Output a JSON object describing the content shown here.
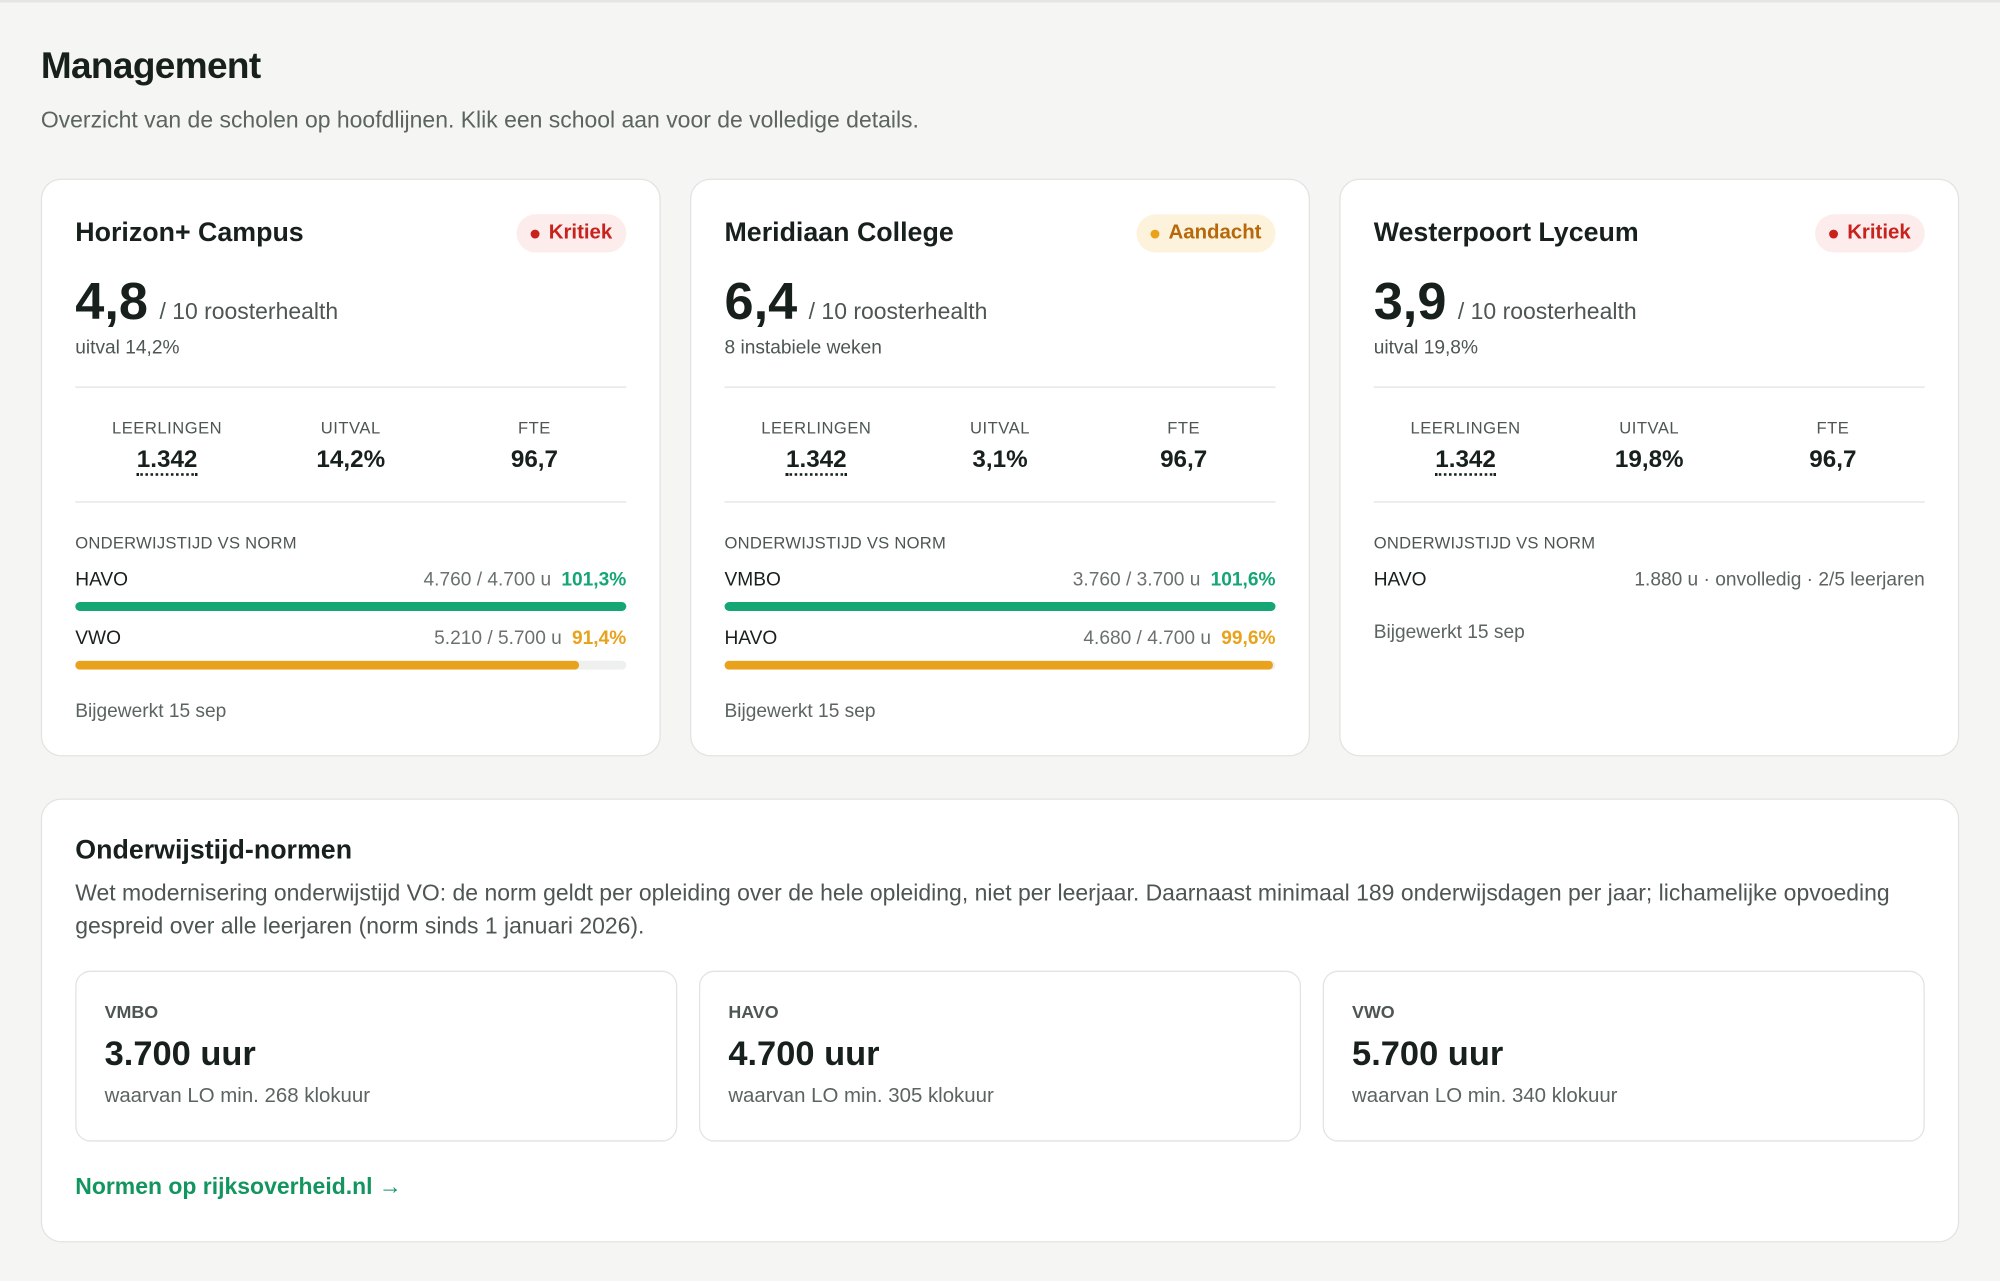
{
  "header": {
    "title": "Management",
    "subtitle": "Overzicht van de scholen op hoofdlijnen. Klik een school aan voor de volledige details."
  },
  "schools": [
    {
      "name": "Horizon+ Campus",
      "status": "Kritiek",
      "level": "critical",
      "score": "4,8",
      "score_suffix": "/ 10 roosterhealth",
      "note": "uitval 14,2%",
      "stats": [
        {
          "label": "LEERLINGEN",
          "value": "1.342"
        },
        {
          "label": "UITVAL",
          "value": "14,2%"
        },
        {
          "label": "FTE",
          "value": "96,7"
        }
      ],
      "section_title": "ONDERWIJSTIJD VS NORM",
      "programs": [
        {
          "name": "HAVO",
          "hours": "4.760 / 4.700 u",
          "percent": {
            "value": 101.3,
            "label": "101,3%"
          },
          "color": "#14a673"
        },
        {
          "name": "VWO",
          "hours": "5.210 / 5.700 u",
          "percent": {
            "value": 91.4,
            "label": "91,4%"
          },
          "color": "#e9a21b"
        }
      ],
      "updated": "Bijgewerkt 15 sep"
    },
    {
      "name": "Meridiaan College",
      "status": "Aandacht",
      "level": "warning",
      "score": "6,4",
      "score_suffix": "/ 10 roosterhealth",
      "note": "8 instabiele weken",
      "stats": [
        {
          "label": "LEERLINGEN",
          "value": "1.342"
        },
        {
          "label": "UITVAL",
          "value": "3,1%"
        },
        {
          "label": "FTE",
          "value": "96,7"
        }
      ],
      "section_title": "ONDERWIJSTIJD VS NORM",
      "programs": [
        {
          "name": "VMBO",
          "hours": "3.760 / 3.700 u",
          "percent": {
            "value": 101.6,
            "label": "101,6%"
          },
          "color": "#14a673"
        },
        {
          "name": "HAVO",
          "hours": "4.680 / 4.700 u",
          "percent": {
            "value": 99.6,
            "label": "99,6%"
          },
          "color": "#e9a21b"
        }
      ],
      "updated": "Bijgewerkt 15 sep"
    },
    {
      "name": "Westerpoort Lyceum",
      "status": "Kritiek",
      "level": "critical",
      "score": "3,9",
      "score_suffix": "/ 10 roosterhealth",
      "note": "uitval 19,8%",
      "stats": [
        {
          "label": "LEERLINGEN",
          "value": "1.342"
        },
        {
          "label": "UITVAL",
          "value": "19,8%"
        },
        {
          "label": "FTE",
          "value": "96,7"
        }
      ],
      "section_title": "ONDERWIJSTIJD VS NORM",
      "programs": [
        {
          "name": "HAVO",
          "hours": "1.880 u · onvolledig · 2/5 leerjaren"
        }
      ],
      "updated": "Bijgewerkt 15 sep"
    }
  ],
  "norms": {
    "title": "Onderwijstijd-normen",
    "text": "Wet modernisering onderwijstijd VO: de norm geldt per opleiding over de hele opleiding, niet per leerjaar. Daarnaast minimaal 189 onderwijsdagen per jaar; lichamelijke opvoeding gespreid over alle leerjaren (norm sinds 1 januari 2026).",
    "items": [
      {
        "level": "VMBO",
        "hours": "3.700 uur",
        "lo": "waarvan LO min. 268 klokuur"
      },
      {
        "level": "HAVO",
        "hours": "4.700 uur",
        "lo": "waarvan LO min. 305 klokuur"
      },
      {
        "level": "VWO",
        "hours": "5.700 uur",
        "lo": "waarvan LO min. 340 klokuur"
      }
    ],
    "link": "Normen op rijksoverheid.nl →"
  }
}
